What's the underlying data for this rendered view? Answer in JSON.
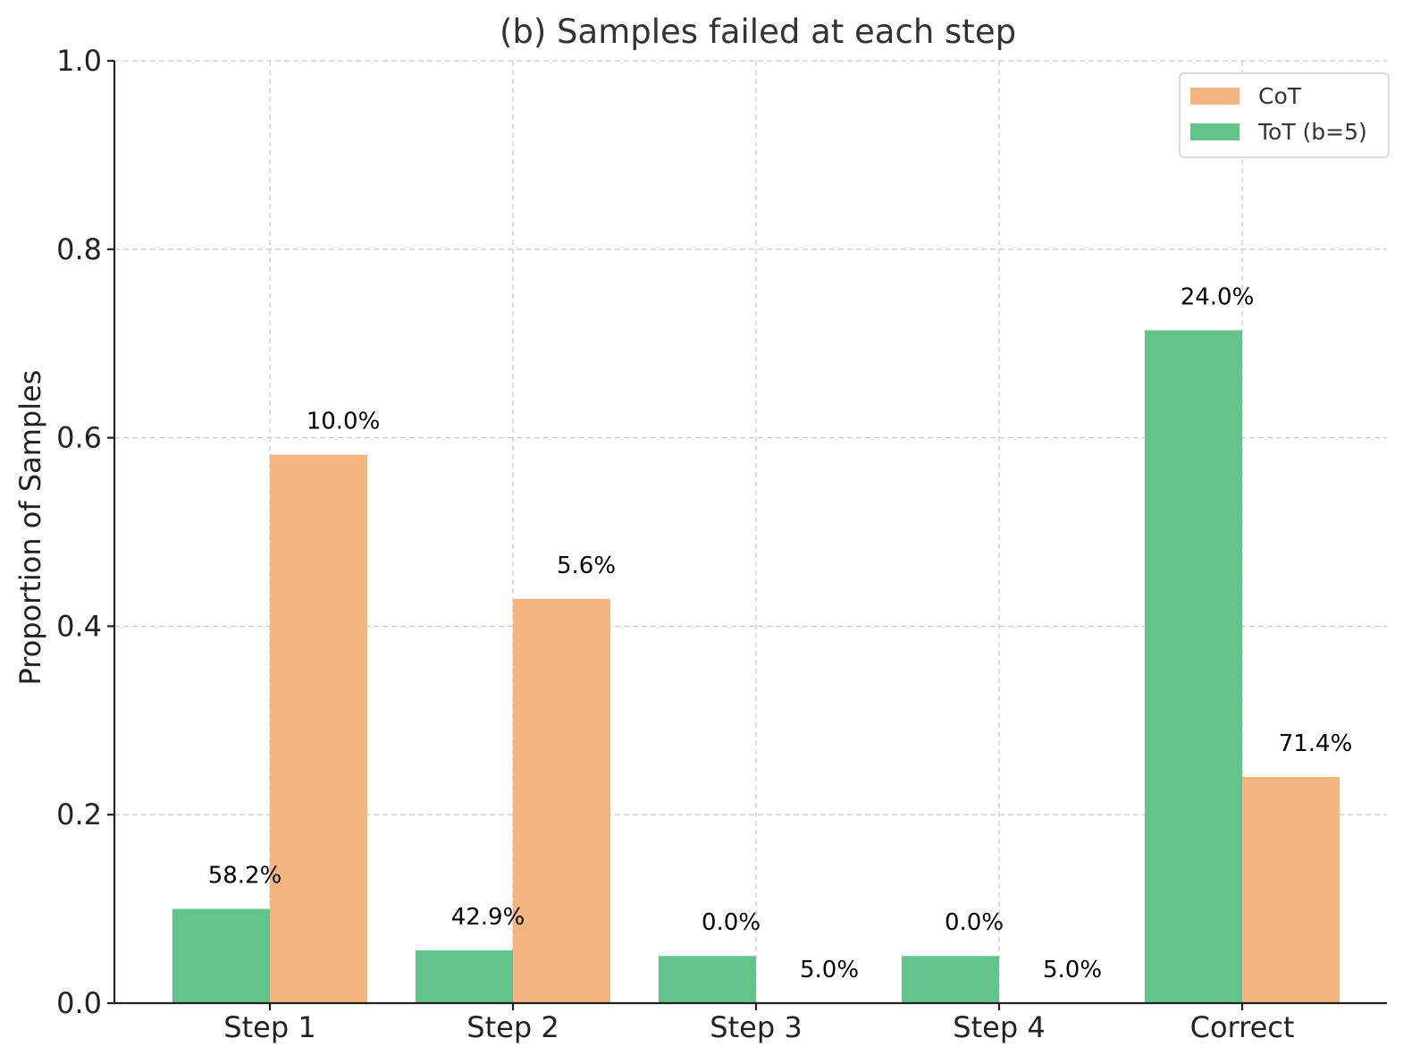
{
  "chart_data": {
    "type": "bar",
    "title": "(b) Samples failed at each step",
    "xlabel": "",
    "ylabel": "Proportion of Samples",
    "categories": [
      "Step 1",
      "Step 2",
      "Step 3",
      "Step 4",
      "Correct"
    ],
    "ylim": [
      0,
      1.0
    ],
    "yticks": [
      "0.0",
      "0.2",
      "0.4",
      "0.6",
      "0.8",
      "1.0"
    ],
    "grid": true,
    "legend_position": "top-right",
    "series": [
      {
        "name": "ToT (b=5)",
        "color": "#64c28b",
        "values": [
          0.1,
          0.056,
          0.05,
          0.05,
          0.714
        ],
        "labels": [
          "10.0%",
          "5.6%",
          "5.0%",
          "5.0%",
          "71.4%"
        ]
      },
      {
        "name": "CoT",
        "color": "#f4b580",
        "values": [
          0.582,
          0.429,
          0.0,
          0.0,
          0.24
        ],
        "labels": [
          "58.2%",
          "42.9%",
          "0.0%",
          "0.0%",
          "24.0%"
        ]
      }
    ]
  }
}
